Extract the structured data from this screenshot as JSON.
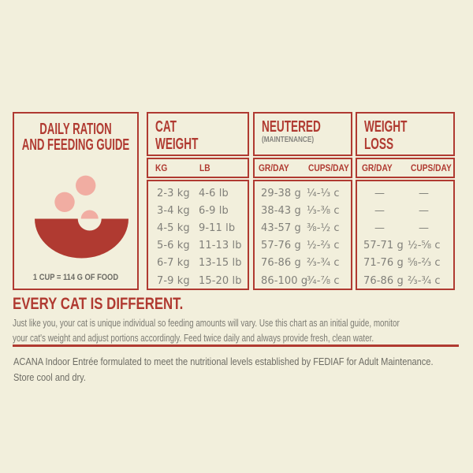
{
  "colors": {
    "background": "#F2EFDC",
    "accent_red": "#B03A31",
    "kibble_pink": "#F1ADA2",
    "data_text_gray": "#81807A",
    "note_text_gray": "#6D6C64"
  },
  "table": {
    "info_panel": {
      "title_lines": [
        "DAILY RATION",
        "AND FEEDING GUIDE"
      ],
      "icon": "food-bowl-icon",
      "note": "1 CUP = 114 G OF FOOD"
    },
    "columns": [
      {
        "id": "cat_weight",
        "title_lines": [
          "CAT",
          "WEIGHT"
        ],
        "subtitle": "",
        "units": [
          "KG",
          "LB"
        ],
        "rows": [
          [
            "2-3 kg",
            "4-6 lb"
          ],
          [
            "3-4 kg",
            "6-9 lb"
          ],
          [
            "4-5 kg",
            "9-11 lb"
          ],
          [
            "5-6 kg",
            "11-13 lb"
          ],
          [
            "6-7 kg",
            "13-15 lb"
          ],
          [
            "7-9 kg",
            "15-20 lb"
          ]
        ]
      },
      {
        "id": "neutered_maintenance",
        "title_lines": [
          "NEUTERED"
        ],
        "subtitle": "(MAINTENANCE)",
        "units": [
          "GR/DAY",
          "CUPS/DAY"
        ],
        "rows": [
          [
            "29-38 g",
            "¼-⅓ c"
          ],
          [
            "38-43 g",
            "⅓-⅜ c"
          ],
          [
            "43-57 g",
            "⅜-½ c"
          ],
          [
            "57-76 g",
            "½-⅔ c"
          ],
          [
            "76-86 g",
            "⅔-¾ c"
          ],
          [
            "86-100 g",
            "¾-⅞ c"
          ]
        ]
      },
      {
        "id": "weight_loss",
        "title_lines": [
          "WEIGHT",
          "LOSS"
        ],
        "subtitle": "",
        "units": [
          "GR/DAY",
          "CUPS/DAY"
        ],
        "rows": [
          [
            "—",
            "—"
          ],
          [
            "—",
            "—"
          ],
          [
            "—",
            "—"
          ],
          [
            "57-71 g",
            "½-⅝ c"
          ],
          [
            "71-76 g",
            "⅝-⅔ c"
          ],
          [
            "76-86 g",
            "⅔-¾ c"
          ]
        ]
      }
    ]
  },
  "footer": {
    "heading": "EVERY CAT IS DIFFERENT.",
    "body_lines": [
      "Just like you, your cat is unique individual so feeding amounts will vary. Use this chart as an initial guide, monitor",
      "your cat's weight and adjust portions accordingly. Feed twice daily and always provide fresh, clean water."
    ],
    "note_lines": [
      "ACANA Indoor Entrée formulated to meet the nutritional levels established by FEDIAF  for Adult Maintenance.",
      "Store cool and dry."
    ]
  }
}
